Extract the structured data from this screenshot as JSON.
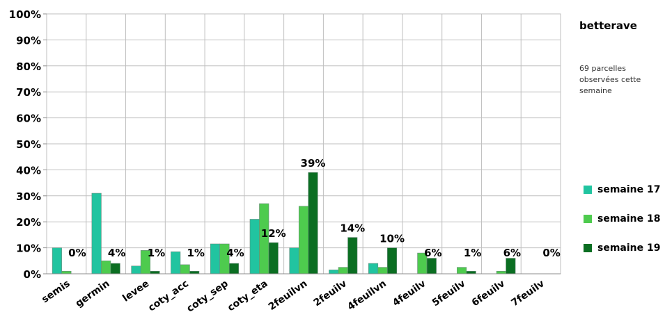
{
  "chart_data": {
    "type": "bar",
    "title": "",
    "xlabel": "",
    "ylabel": "",
    "ylim": [
      0,
      1
    ],
    "y_format": "percent",
    "grid": true,
    "categories": [
      "semis",
      "germin",
      "levee",
      "coty_acc",
      "coty_sep",
      "coty_eta",
      "2feuilvn",
      "2feuilv",
      "4feuilvn",
      "4feuilv",
      "5feuilv",
      "6feuilv",
      "7feuilv"
    ],
    "series": [
      {
        "name": "semaine 17",
        "color": "#21c4a0",
        "values": [
          0.1,
          0.31,
          0.03,
          0.085,
          0.115,
          0.21,
          0.1,
          0.015,
          0.04,
          0.0,
          0.0,
          0.0,
          0.0
        ]
      },
      {
        "name": "semaine 18",
        "color": "#4ecb4e",
        "values": [
          0.01,
          0.05,
          0.09,
          0.035,
          0.115,
          0.27,
          0.26,
          0.025,
          0.025,
          0.08,
          0.025,
          0.01,
          0.0
        ]
      },
      {
        "name": "semaine 19",
        "color": "#0b6e22",
        "values": [
          0.0,
          0.04,
          0.01,
          0.01,
          0.04,
          0.12,
          0.39,
          0.14,
          0.1,
          0.06,
          0.01,
          0.06,
          0.0
        ]
      }
    ],
    "data_labels": [
      "0%",
      "4%",
      "1%",
      "1%",
      "4%",
      "12%",
      "39%",
      "14%",
      "10%",
      "6%",
      "1%",
      "6%",
      "0%"
    ],
    "y_ticks": [
      "0%",
      "10%",
      "20%",
      "30%",
      "40%",
      "50%",
      "60%",
      "70%",
      "80%",
      "90%",
      "100%"
    ],
    "legend_position": "right"
  },
  "legend": {
    "title": "betterave",
    "note": "69 parcelles observées cette semaine"
  }
}
